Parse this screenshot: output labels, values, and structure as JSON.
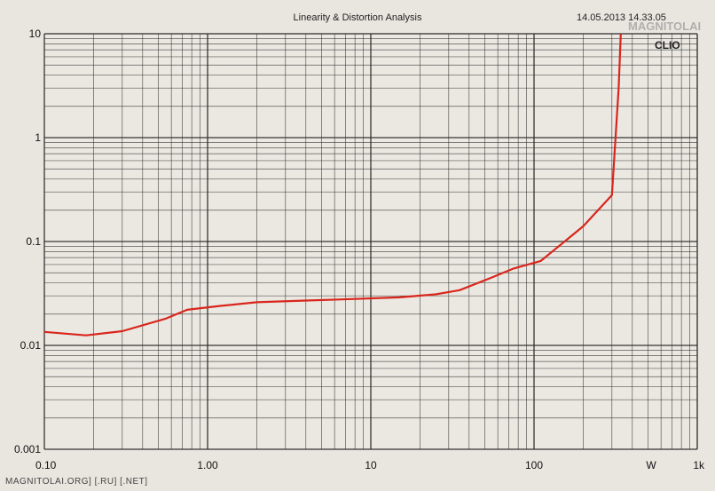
{
  "header": {
    "title": "Linearity & Distortion Analysis",
    "datetime": "14.05.2013 14.33.05",
    "brand": "CLIO"
  },
  "watermark": "MAGNITOLAI",
  "footer": "MAGNITOLAI.ORG] [.RU] [.NET]",
  "colors": {
    "line": "#d9261c",
    "grid": "#2b2b2b",
    "background": "#e9e6e0"
  },
  "chart_data": {
    "type": "line",
    "title": "Linearity & Distortion Analysis",
    "xscale": "log",
    "yscale": "log",
    "xlim": [
      0.1,
      1000
    ],
    "ylim": [
      0.001,
      10
    ],
    "xticks": [
      {
        "value": 0.1,
        "label": "0.10"
      },
      {
        "value": 1,
        "label": "1.00"
      },
      {
        "value": 10,
        "label": "10"
      },
      {
        "value": 100,
        "label": "100"
      },
      {
        "value": 1000,
        "label": "1k"
      }
    ],
    "xunit_label": "W",
    "yticks": [
      {
        "value": 10,
        "label": "10"
      },
      {
        "value": 1,
        "label": "1"
      },
      {
        "value": 0.1,
        "label": "0.1"
      },
      {
        "value": 0.01,
        "label": "0.01"
      },
      {
        "value": 0.001,
        "label": "0.001"
      }
    ],
    "grid": true,
    "series": [
      {
        "color": "#d9261c",
        "x": [
          0.1,
          0.18,
          0.3,
          0.55,
          0.75,
          1.2,
          2.0,
          4.0,
          8.0,
          15,
          25,
          35,
          55,
          75,
          110,
          200,
          300,
          330,
          340
        ],
        "y": [
          0.0135,
          0.0125,
          0.0137,
          0.018,
          0.022,
          0.024,
          0.026,
          0.027,
          0.028,
          0.029,
          0.031,
          0.034,
          0.045,
          0.055,
          0.065,
          0.14,
          0.28,
          3.0,
          10.0
        ]
      }
    ]
  }
}
